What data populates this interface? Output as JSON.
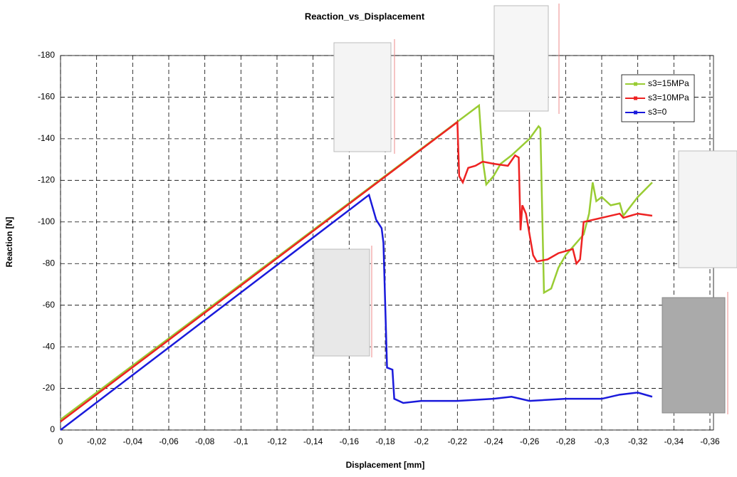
{
  "chart_data": {
    "type": "line",
    "title": "Reaction_vs_Displacement",
    "x_label": "Displacement [mm]",
    "y_label": "Reaction [N]",
    "xlim": [
      0,
      -0.36
    ],
    "ylim": [
      0,
      -180
    ],
    "xticks": [
      0,
      {
        "value": -0.02,
        "label": "-0,02"
      },
      {
        "value": -0.04,
        "label": "-0,04"
      },
      {
        "value": -0.06,
        "label": "-0,06"
      },
      {
        "value": -0.08,
        "label": "-0,08"
      },
      {
        "value": -0.1,
        "label": "-0,1"
      },
      {
        "value": -0.12,
        "label": "-0,12"
      },
      {
        "value": -0.14,
        "label": "-0,14"
      },
      {
        "value": -0.16,
        "label": "-0,16"
      },
      {
        "value": -0.18,
        "label": "-0,18"
      },
      {
        "value": -0.2,
        "label": "-0,2"
      },
      {
        "value": -0.22,
        "label": "-0,22"
      },
      {
        "value": -0.24,
        "label": "-0,24"
      },
      {
        "value": -0.26,
        "label": "-0,26"
      },
      {
        "value": -0.28,
        "label": "-0,28"
      },
      {
        "value": -0.3,
        "label": "-0,3"
      },
      {
        "value": -0.32,
        "label": "-0,32"
      },
      {
        "value": -0.34,
        "label": "-0,34"
      },
      {
        "value": -0.36,
        "label": "-0,36"
      }
    ],
    "yticks": [
      0,
      -20,
      -40,
      -60,
      -80,
      -100,
      -120,
      -140,
      -160,
      -180
    ],
    "grid": true,
    "series": [
      {
        "name": "s3=15MPa",
        "color": "#99cc33",
        "x": [
          0,
          -0.232,
          -0.234,
          -0.236,
          -0.24,
          -0.244,
          -0.25,
          -0.26,
          -0.265,
          -0.266,
          -0.268,
          -0.272,
          -0.276,
          -0.28,
          -0.29,
          -0.293,
          -0.295,
          -0.297,
          -0.3,
          -0.305,
          -0.31,
          -0.312,
          -0.32,
          -0.328
        ],
        "values": [
          -5,
          -156,
          -130,
          -118,
          -122,
          -128,
          -132,
          -140,
          -146,
          -145,
          -66,
          -68,
          -78,
          -84,
          -94,
          -104,
          -119,
          -110,
          -112,
          -108,
          -109,
          -103,
          -112,
          -119
        ]
      },
      {
        "name": "s3=10MPa",
        "color": "#ee2222",
        "x": [
          0,
          -0.22,
          -0.221,
          -0.223,
          -0.226,
          -0.23,
          -0.234,
          -0.24,
          -0.248,
          -0.252,
          -0.254,
          -0.255,
          -0.256,
          -0.258,
          -0.26,
          -0.262,
          -0.264,
          -0.27,
          -0.276,
          -0.28,
          -0.284,
          -0.286,
          -0.288,
          -0.29,
          -0.3,
          -0.31,
          -0.312,
          -0.32,
          -0.328
        ],
        "values": [
          -4,
          -148,
          -122,
          -119,
          -126,
          -127,
          -129,
          -128,
          -127,
          -132,
          -131,
          -96,
          -108,
          -104,
          -94,
          -84,
          -81,
          -82,
          -85,
          -86,
          -87,
          -80,
          -82,
          -100,
          -102,
          -104,
          -102,
          -104,
          -103
        ]
      },
      {
        "name": "s3=0",
        "color": "#1a1adb",
        "x": [
          0,
          -0.171,
          -0.172,
          -0.175,
          -0.178,
          -0.179,
          -0.181,
          -0.184,
          -0.185,
          -0.19,
          -0.2,
          -0.22,
          -0.24,
          -0.25,
          -0.26,
          -0.28,
          -0.3,
          -0.31,
          -0.32,
          -0.328
        ],
        "values": [
          0,
          -113,
          -110,
          -101,
          -97,
          -90,
          -30,
          -29,
          -15,
          -13,
          -14,
          -14,
          -15,
          -16,
          -14,
          -15,
          -15,
          -17,
          -18,
          -16
        ]
      }
    ]
  }
}
